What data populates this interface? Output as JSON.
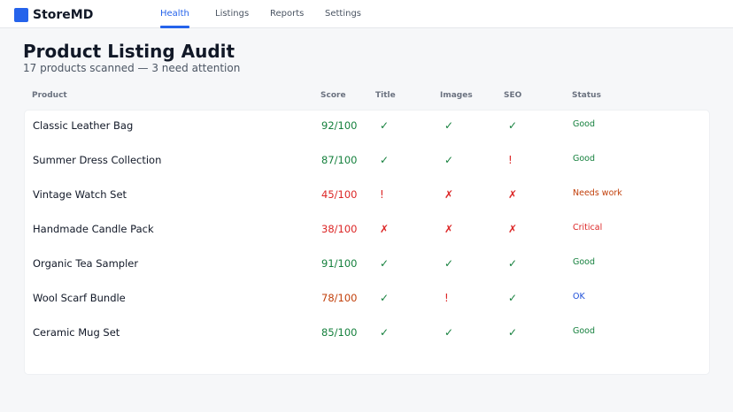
{
  "brand": {
    "name": "StoreMD",
    "logo_icon": "square-logo-icon",
    "accent": "#2563eb"
  },
  "nav": {
    "tabs": [
      {
        "label": "Health",
        "active": true
      },
      {
        "label": "Listings",
        "active": false
      },
      {
        "label": "Reports",
        "active": false
      },
      {
        "label": "Settings",
        "active": false
      }
    ]
  },
  "page": {
    "title": "Product Listing Audit",
    "subtitle": "17 products scanned — 3 need attention"
  },
  "table": {
    "headers": {
      "product": "Product",
      "score": "Score",
      "title": "Title",
      "images": "Images",
      "seo": "SEO",
      "status": "Status"
    },
    "rows": [
      {
        "product": "Classic Leather Bag",
        "score": "92/100",
        "score_color": "#15803d",
        "title": "✓",
        "images": "✓",
        "seo": "✓",
        "status": "Good",
        "status_color": "#15803d"
      },
      {
        "product": "Summer Dress Collection",
        "score": "87/100",
        "score_color": "#15803d",
        "title": "✓",
        "images": "✓",
        "seo": "!",
        "status": "Good",
        "status_color": "#15803d"
      },
      {
        "product": "Vintage Watch Set",
        "score": "45/100",
        "score_color": "#dc2626",
        "title": "!",
        "images": "✗",
        "seo": "✗",
        "status": "Needs work",
        "status_color": "#c2410c"
      },
      {
        "product": "Handmade Candle Pack",
        "score": "38/100",
        "score_color": "#dc2626",
        "title": "✗",
        "images": "✗",
        "seo": "✗",
        "status": "Critical",
        "status_color": "#dc2626"
      },
      {
        "product": "Organic Tea Sampler",
        "score": "91/100",
        "score_color": "#15803d",
        "title": "✓",
        "images": "✓",
        "seo": "✓",
        "status": "Good",
        "status_color": "#15803d"
      },
      {
        "product": "Wool Scarf Bundle",
        "score": "78/100",
        "score_color": "#c2410c",
        "title": "✓",
        "images": "!",
        "seo": "✓",
        "status": "OK",
        "status_color": "#1d4ed8"
      },
      {
        "product": "Ceramic Mug Set",
        "score": "85/100",
        "score_color": "#15803d",
        "title": "✓",
        "images": "✓",
        "seo": "✓",
        "status": "Good",
        "status_color": "#15803d"
      }
    ]
  },
  "mark_colors": {
    "✓": "#15803d",
    "!": "#dc2626",
    "✗": "#dc2626"
  }
}
